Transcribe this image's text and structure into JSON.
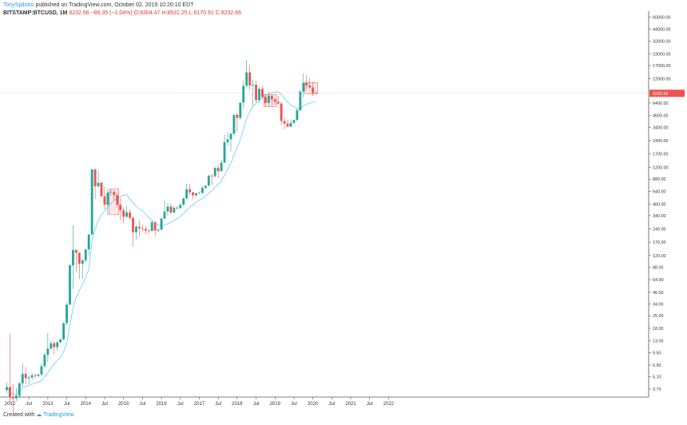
{
  "header": {
    "author": "TonySpilotro",
    "published_text": "published on TradingView.com, October 02, 2019 10:20:10 EDT",
    "symbol": "BITSTAMP:BTCUSD, 1M",
    "price": "8232.66",
    "change": "−86.35 (−1.04%)",
    "open": "O:8304.47",
    "high": "H:8531.25",
    "low": "L:8170.91",
    "close": "C:8232.66"
  },
  "footer": {
    "created_with": "Created with",
    "brand": "TradingView"
  },
  "colors": {
    "up": "#26a69a",
    "down": "#ef5350",
    "ma": "#4fc3f7",
    "box_fill": "#f8d7d7",
    "box_stroke": "#ef5350",
    "price_tag": "#ef5350"
  },
  "chart_data": {
    "type": "candlestick",
    "y_scale": "log",
    "ylim": [
      3,
      70000
    ],
    "x_labels": [
      "2012",
      "Jul",
      "2013",
      "Jul",
      "2014",
      "Jul",
      "2015",
      "Jul",
      "2016",
      "Jul",
      "2017",
      "Jul",
      "2018",
      "Jul",
      "2019",
      "Jul",
      "2020",
      "Jul",
      "2021",
      "Jul",
      "2022"
    ],
    "y_ticks": [
      "60000.00",
      "44000.00",
      "32000.00",
      "23000.00",
      "17000.00",
      "12000.00",
      "8232.66",
      "6400.00",
      "4600.00",
      "3400.00",
      "2400.00",
      "1700.00",
      "1200.00",
      "880.00",
      "640.00",
      "460.00",
      "340.00",
      "240.00",
      "170.00",
      "120.00",
      "88.00",
      "64.00",
      "46.00",
      "34.00",
      "25.00",
      "18.00",
      "13.00",
      "9.50",
      "6.90",
      "5.10",
      "3.70"
    ],
    "last_price": "8232.66",
    "candles": [
      [
        3.6,
        4.4,
        3.3,
        3.9
      ],
      [
        3.9,
        15.5,
        2.5,
        3.0
      ],
      [
        3.0,
        4.2,
        2.0,
        2.9
      ],
      [
        2.9,
        3.8,
        2.7,
        3.1
      ],
      [
        3.1,
        4.4,
        2.9,
        4.3
      ],
      [
        4.3,
        7.2,
        3.9,
        5.5
      ],
      [
        5.5,
        6.6,
        4.2,
        4.9
      ],
      [
        4.9,
        5.3,
        4.2,
        5.0
      ],
      [
        5.0,
        5.6,
        4.7,
        5.3
      ],
      [
        5.3,
        5.6,
        4.9,
        5.2
      ],
      [
        5.2,
        5.5,
        5.0,
        5.4
      ],
      [
        5.4,
        7.2,
        5.1,
        6.7
      ],
      [
        6.7,
        9.5,
        6.3,
        9.0
      ],
      [
        9.0,
        16.0,
        7.5,
        10.6
      ],
      [
        10.6,
        13.0,
        10.3,
        12.2
      ],
      [
        12.2,
        12.8,
        9.0,
        11.0
      ],
      [
        11.0,
        12.8,
        10.0,
        12.5
      ],
      [
        12.5,
        13.7,
        12.2,
        13.5
      ],
      [
        13.5,
        21.0,
        13.2,
        20.6
      ],
      [
        20.6,
        35.0,
        19.4,
        33.4
      ],
      [
        33.4,
        95.0,
        33.0,
        93.0
      ],
      [
        93.0,
        266.0,
        50.0,
        139.0
      ],
      [
        139.0,
        140.0,
        78.0,
        129.0
      ],
      [
        129.0,
        130.0,
        65.0,
        97.0
      ],
      [
        97.0,
        110.0,
        65.0,
        106.0
      ],
      [
        106.0,
        140.0,
        100.0,
        141.0
      ],
      [
        141.0,
        200.0,
        120.0,
        208.0
      ],
      [
        208.0,
        1160.0,
        200.0,
        1130.0
      ],
      [
        1130.0,
        1160.0,
        520.0,
        730.0
      ],
      [
        730.0,
        1100.0,
        700.0,
        800.0
      ],
      [
        800.0,
        820.0,
        600.0,
        560.0
      ],
      [
        560.0,
        720.0,
        400.0,
        450.0
      ],
      [
        450.0,
        680.0,
        340.0,
        620.0
      ],
      [
        620.0,
        680.0,
        570.0,
        630.0
      ],
      [
        630.0,
        660.0,
        500.0,
        580.0
      ],
      [
        580.0,
        620.0,
        430.0,
        450.0
      ],
      [
        450.0,
        540.0,
        300.0,
        390.0
      ],
      [
        390.0,
        420.0,
        280.0,
        330.0
      ],
      [
        330.0,
        440.0,
        320.0,
        370.0
      ],
      [
        370.0,
        400.0,
        300.0,
        320.0
      ],
      [
        320.0,
        330.0,
        150.0,
        220.0
      ],
      [
        220.0,
        265.0,
        180.0,
        254.0
      ],
      [
        254.0,
        300.0,
        195.0,
        244.0
      ],
      [
        244.0,
        270.0,
        220.0,
        240.0
      ],
      [
        240.0,
        260.0,
        210.0,
        230.0
      ],
      [
        230.0,
        240.0,
        210.0,
        228.0
      ],
      [
        228.0,
        300.0,
        225.0,
        285.0
      ],
      [
        285.0,
        295.0,
        200.0,
        230.0
      ],
      [
        230.0,
        240.0,
        220.0,
        236.0
      ],
      [
        236.0,
        320.0,
        230.0,
        314.0
      ],
      [
        314.0,
        500.0,
        310.0,
        378.0
      ],
      [
        378.0,
        470.0,
        340.0,
        430.0
      ],
      [
        430.0,
        470.0,
        350.0,
        368.0
      ],
      [
        368.0,
        440.0,
        360.0,
        416.0
      ],
      [
        416.0,
        440.0,
        400.0,
        416.0
      ],
      [
        416.0,
        470.0,
        400.0,
        448.0
      ],
      [
        448.0,
        540.0,
        445.0,
        531.0
      ],
      [
        531.0,
        780.0,
        520.0,
        673.0
      ],
      [
        673.0,
        770.0,
        580.0,
        624.0
      ],
      [
        624.0,
        630.0,
        520.0,
        575.0
      ],
      [
        575.0,
        620.0,
        560.0,
        608.0
      ],
      [
        608.0,
        630.0,
        600.0,
        613.0
      ],
      [
        613.0,
        740.0,
        605.0,
        700.0
      ],
      [
        700.0,
        750.0,
        680.0,
        741.0
      ],
      [
        741.0,
        980.0,
        730.0,
        964.0
      ],
      [
        964.0,
        1000.0,
        750.0,
        950.0
      ],
      [
        950.0,
        1190.0,
        920.0,
        1180.0
      ],
      [
        1180.0,
        1290.0,
        900.0,
        1080.0
      ],
      [
        1080.0,
        1450.0,
        1070.0,
        1350.0
      ],
      [
        1350.0,
        2800.0,
        1350.0,
        2300.0
      ],
      [
        2300.0,
        3000.0,
        2100.0,
        2480.0
      ],
      [
        2480.0,
        2900.0,
        1800.0,
        2870.0
      ],
      [
        2870.0,
        4700.0,
        2700.0,
        4700.0
      ],
      [
        4700.0,
        5000.0,
        2980.0,
        4340.0
      ],
      [
        4340.0,
        6500.0,
        4100.0,
        6450.0
      ],
      [
        6450.0,
        11400.0,
        5500.0,
        10000.0
      ],
      [
        10000.0,
        19700.0,
        9800.0,
        14200.0
      ],
      [
        14200.0,
        17200.0,
        9000.0,
        10100.0
      ],
      [
        10100.0,
        11800.0,
        6000.0,
        10300.0
      ],
      [
        10300.0,
        11500.0,
        6500.0,
        6900.0
      ],
      [
        6900.0,
        9800.0,
        6400.0,
        9250.0
      ],
      [
        9250.0,
        10000.0,
        7000.0,
        7500.0
      ],
      [
        7500.0,
        7800.0,
        5800.0,
        6400.0
      ],
      [
        6400.0,
        8500.0,
        5800.0,
        7730.0
      ],
      [
        7730.0,
        7900.0,
        5900.0,
        7000.0
      ],
      [
        7000.0,
        7400.0,
        6100.0,
        6600.0
      ],
      [
        6600.0,
        7700.0,
        6200.0,
        6300.0
      ],
      [
        6300.0,
        6600.0,
        3600.0,
        4000.0
      ],
      [
        4000.0,
        4400.0,
        3200.0,
        3740.0
      ],
      [
        3740.0,
        4100.0,
        3400.0,
        3450.0
      ],
      [
        3450.0,
        4200.0,
        3400.0,
        3800.0
      ],
      [
        3800.0,
        4100.0,
        3700.0,
        4100.0
      ],
      [
        4100.0,
        5500.0,
        4000.0,
        5300.0
      ],
      [
        5300.0,
        9100.0,
        5200.0,
        8600.0
      ],
      [
        8600.0,
        13900.0,
        7400.0,
        10800.0
      ],
      [
        10800.0,
        13200.0,
        9100.0,
        10100.0
      ],
      [
        10100.0,
        12300.0,
        9300.0,
        9600.0
      ],
      [
        9600.0,
        10900.0,
        7700.0,
        8300.0
      ],
      [
        8304.47,
        8531.25,
        8170.91,
        8232.66
      ]
    ],
    "highlight_boxes": [
      {
        "from_index": 33,
        "to_index": 35,
        "low": 350.0,
        "high": 680.0
      },
      {
        "from_index": 82,
        "to_index": 85,
        "low": 5800.0,
        "high": 8000.0
      },
      {
        "from_index": 95,
        "to_index": 98,
        "low": 8150.0,
        "high": 10900.0
      }
    ]
  }
}
